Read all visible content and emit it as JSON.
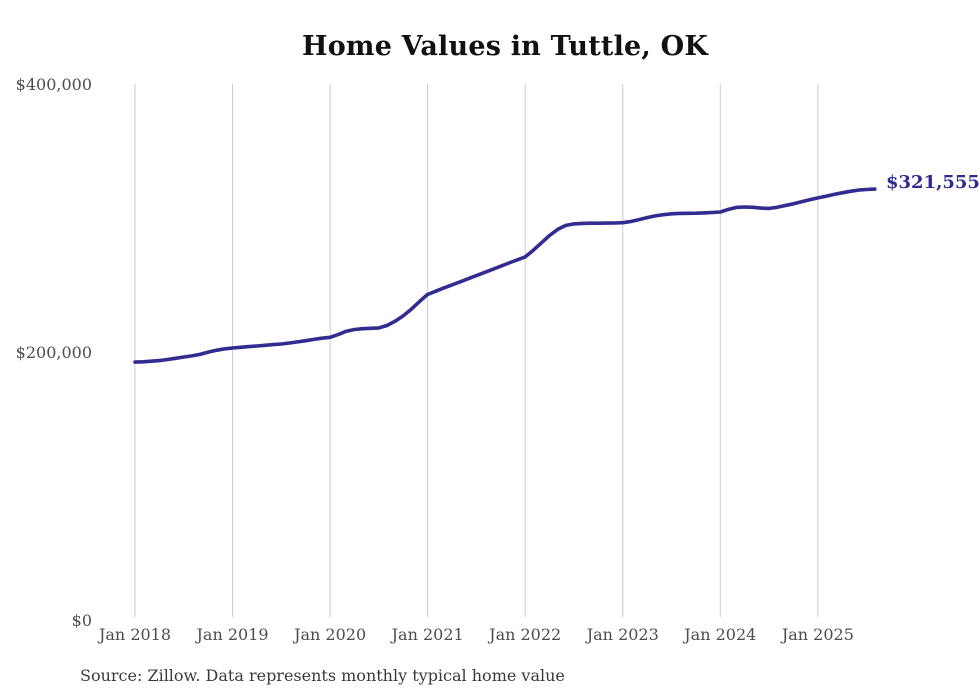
{
  "chart_data": {
    "type": "line",
    "title": "Home Values in Tuttle, OK",
    "series": [
      {
        "name": "Monthly typical home value",
        "start_month": "2018-01",
        "frequency": "monthly",
        "values": [
          192500,
          192700,
          193100,
          193600,
          194400,
          195300,
          196300,
          197100,
          198200,
          199900,
          201300,
          202300,
          203000,
          203500,
          204000,
          204500,
          205000,
          205500,
          206000,
          206700,
          207500,
          208400,
          209400,
          210300,
          211000,
          213000,
          215500,
          216800,
          217400,
          217700,
          218000,
          219800,
          223000,
          227000,
          232000,
          237600,
          243000,
          245400,
          247800,
          250100,
          252400,
          254700,
          257000,
          259400,
          261700,
          264000,
          266400,
          268700,
          271000,
          276000,
          281500,
          287000,
          291500,
          294500,
          295600,
          296000,
          296100,
          296100,
          296200,
          296300,
          296500,
          297400,
          298800,
          300300,
          301600,
          302500,
          303100,
          303400,
          303500,
          303600,
          303800,
          304100,
          304500,
          306400,
          307900,
          308200,
          308000,
          307400,
          307200,
          308000,
          309300,
          310600,
          312100,
          313600,
          315000,
          316300,
          317600,
          318800,
          319900,
          320800,
          321300,
          321555
        ]
      }
    ],
    "x_tick_labels": [
      "Jan 2018",
      "Jan 2019",
      "Jan 2020",
      "Jan 2021",
      "Jan 2022",
      "Jan 2023",
      "Jan 2024",
      "Jan 2025"
    ],
    "y_ticks": [
      {
        "label": "$400,000",
        "value": 400000
      },
      {
        "label": "$200,000",
        "value": 200000
      },
      {
        "label": "$0",
        "value": 0
      }
    ],
    "ylim": [
      0,
      400000
    ],
    "grid": "vertical-only",
    "legend": "none",
    "end_label": "$321,555",
    "final_value": 321555,
    "colors": {
      "line": "#322c91",
      "end_label": "#2f2a8f",
      "gridline": "#cccccc",
      "axis_text": "#4d4d4d",
      "title": "#111111",
      "source_text": "#3a3a3a"
    }
  },
  "footer": {
    "source": "Source: Zillow. Data represents monthly typical home value"
  }
}
